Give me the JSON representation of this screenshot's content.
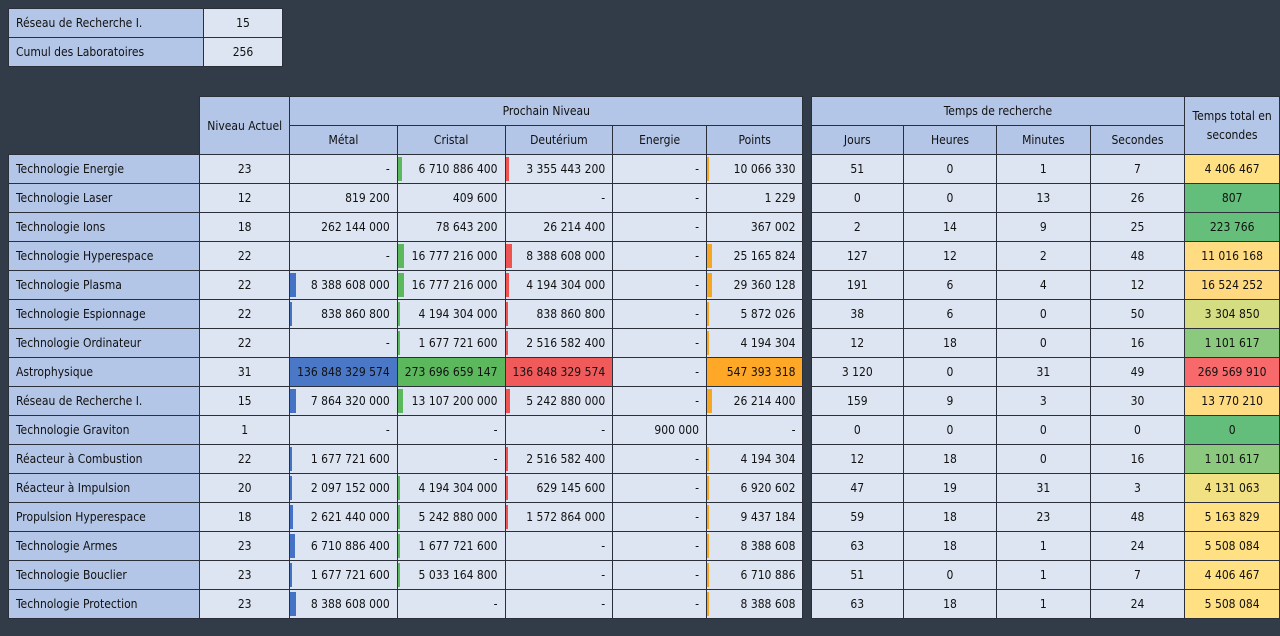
{
  "summary": [
    {
      "label": "Réseau de Recherche I.",
      "value": "15"
    },
    {
      "label": "Cumul des Laboratoires",
      "value": "256"
    }
  ],
  "headers": {
    "niveau": "Niveau Actuel",
    "prochain": "Prochain Niveau",
    "metal": "Métal",
    "cristal": "Cristal",
    "deut": "Deutérium",
    "energie": "Energie",
    "points": "Points",
    "temps": "Temps de recherche",
    "jours": "Jours",
    "heures": "Heures",
    "minutes": "Minutes",
    "secondes": "Secondes",
    "total": "Temps total en secondes"
  },
  "rows": [
    {
      "name": "Technologie Energie",
      "level": "23",
      "metal": "-",
      "cristal": "6 710 886 400",
      "deut": "3 355 443 200",
      "energie": "-",
      "points": "10 066 330",
      "jours": "51",
      "heures": "0",
      "minutes": "1",
      "secondes": "7",
      "total": "4 406 467",
      "total_color": "#ffe083",
      "bars": {
        "metal": 0,
        "cristal": 0.04,
        "deut": 0.03,
        "points": 0.02
      }
    },
    {
      "name": "Technologie Laser",
      "level": "12",
      "metal": "819 200",
      "cristal": "409 600",
      "deut": "-",
      "energie": "-",
      "points": "1 229",
      "jours": "0",
      "heures": "0",
      "minutes": "13",
      "secondes": "26",
      "total": "807",
      "total_color": "#63be7b",
      "bars": {
        "metal": 0,
        "cristal": 0,
        "deut": 0,
        "points": 0
      }
    },
    {
      "name": "Technologie Ions",
      "level": "18",
      "metal": "262 144 000",
      "cristal": "78 643 200",
      "deut": "26 214 400",
      "energie": "-",
      "points": "367 002",
      "jours": "2",
      "heures": "14",
      "minutes": "9",
      "secondes": "25",
      "total": "223 766",
      "total_color": "#65bf7b",
      "bars": {
        "metal": 0,
        "cristal": 0,
        "deut": 0,
        "points": 0
      }
    },
    {
      "name": "Technologie Hyperespace",
      "level": "22",
      "metal": "-",
      "cristal": "16 777 216 000",
      "deut": "8 388 608 000",
      "energie": "-",
      "points": "25 165 824",
      "jours": "127",
      "heures": "12",
      "minutes": "2",
      "secondes": "48",
      "total": "11 016 168",
      "total_color": "#ffdc81",
      "bars": {
        "metal": 0,
        "cristal": 0.06,
        "deut": 0.06,
        "points": 0.05
      }
    },
    {
      "name": "Technologie Plasma",
      "level": "22",
      "metal": "8 388 608 000",
      "cristal": "16 777 216 000",
      "deut": "4 194 304 000",
      "energie": "-",
      "points": "29 360 128",
      "jours": "191",
      "heures": "6",
      "minutes": "4",
      "secondes": "12",
      "total": "16 524 252",
      "total_color": "#fed980",
      "bars": {
        "metal": 0.06,
        "cristal": 0.06,
        "deut": 0.03,
        "points": 0.05
      }
    },
    {
      "name": "Technologie Espionnage",
      "level": "22",
      "metal": "838 860 800",
      "cristal": "4 194 304 000",
      "deut": "838 860 800",
      "energie": "-",
      "points": "5 872 026",
      "jours": "38",
      "heures": "6",
      "minutes": "0",
      "secondes": "50",
      "total": "3 304 850",
      "total_color": "#d4dd82",
      "bars": {
        "metal": 0.006,
        "cristal": 0.015,
        "deut": 0.006,
        "points": 0.01
      }
    },
    {
      "name": "Technologie Ordinateur",
      "level": "22",
      "metal": "-",
      "cristal": "1 677 721 600",
      "deut": "2 516 582 400",
      "energie": "-",
      "points": "4 194 304",
      "jours": "12",
      "heures": "18",
      "minutes": "0",
      "secondes": "16",
      "total": "1 101 617",
      "total_color": "#8ac97e",
      "bars": {
        "metal": 0,
        "cristal": 0.006,
        "deut": 0.018,
        "points": 0.008
      }
    },
    {
      "name": "Astrophysique",
      "level": "31",
      "metal": "136 848 329 574",
      "cristal": "273 696 659 147",
      "deut": "136 848 329 574",
      "energie": "-",
      "points": "547 393 318",
      "jours": "3 120",
      "heures": "0",
      "minutes": "31",
      "secondes": "49",
      "total": "269 569 910",
      "total_color": "#f8696b",
      "bars": {
        "metal": 1,
        "cristal": 1,
        "deut": 1,
        "points": 1
      }
    },
    {
      "name": "Réseau de Recherche I.",
      "level": "15",
      "metal": "7 864 320 000",
      "cristal": "13 107 200 000",
      "deut": "5 242 880 000",
      "energie": "-",
      "points": "26 214 400",
      "jours": "159",
      "heures": "9",
      "minutes": "3",
      "secondes": "30",
      "total": "13 770 210",
      "total_color": "#ffdb81",
      "bars": {
        "metal": 0.06,
        "cristal": 0.05,
        "deut": 0.04,
        "points": 0.05
      }
    },
    {
      "name": "Technologie Graviton",
      "level": "1",
      "metal": "-",
      "cristal": "-",
      "deut": "-",
      "energie": "900 000",
      "points": "-",
      "jours": "0",
      "heures": "0",
      "minutes": "0",
      "secondes": "0",
      "total": "0",
      "total_color": "#63be7b",
      "bars": {
        "metal": 0,
        "cristal": 0,
        "deut": 0,
        "points": 0
      }
    },
    {
      "name": "Réacteur à Combustion",
      "level": "22",
      "metal": "1 677 721 600",
      "cristal": "-",
      "deut": "2 516 582 400",
      "energie": "-",
      "points": "4 194 304",
      "jours": "12",
      "heures": "18",
      "minutes": "0",
      "secondes": "16",
      "total": "1 101 617",
      "total_color": "#8ac97e",
      "bars": {
        "metal": 0.012,
        "cristal": 0,
        "deut": 0.018,
        "points": 0.008
      }
    },
    {
      "name": "Réacteur à Impulsion",
      "level": "20",
      "metal": "2 097 152 000",
      "cristal": "4 194 304 000",
      "deut": "629 145 600",
      "energie": "-",
      "points": "6 920 602",
      "jours": "47",
      "heures": "19",
      "minutes": "31",
      "secondes": "3",
      "total": "4 131 063",
      "total_color": "#f2e183",
      "bars": {
        "metal": 0.015,
        "cristal": 0.015,
        "deut": 0.005,
        "points": 0.012
      }
    },
    {
      "name": "Propulsion Hyperespace",
      "level": "18",
      "metal": "2 621 440 000",
      "cristal": "5 242 880 000",
      "deut": "1 572 864 000",
      "energie": "-",
      "points": "9 437 184",
      "jours": "59",
      "heures": "18",
      "minutes": "23",
      "secondes": "48",
      "total": "5 163 829",
      "total_color": "#ffe083",
      "bars": {
        "metal": 0.03,
        "cristal": 0.02,
        "deut": 0.01,
        "points": 0.017
      }
    },
    {
      "name": "Technologie Armes",
      "level": "23",
      "metal": "6 710 886 400",
      "cristal": "1 677 721 600",
      "deut": "-",
      "energie": "-",
      "points": "8 388 608",
      "jours": "63",
      "heures": "18",
      "minutes": "1",
      "secondes": "24",
      "total": "5 508 084",
      "total_color": "#ffe083",
      "bars": {
        "metal": 0.05,
        "cristal": 0.006,
        "deut": 0,
        "points": 0.015
      }
    },
    {
      "name": "Technologie Bouclier",
      "level": "23",
      "metal": "1 677 721 600",
      "cristal": "5 033 164 800",
      "deut": "-",
      "energie": "-",
      "points": "6 710 886",
      "jours": "51",
      "heures": "0",
      "minutes": "1",
      "secondes": "7",
      "total": "4 406 467",
      "total_color": "#ffe083",
      "bars": {
        "metal": 0.012,
        "cristal": 0.018,
        "deut": 0,
        "points": 0.012
      }
    },
    {
      "name": "Technologie Protection",
      "level": "23",
      "metal": "8 388 608 000",
      "cristal": "-",
      "deut": "-",
      "energie": "-",
      "points": "8 388 608",
      "jours": "63",
      "heures": "18",
      "minutes": "1",
      "secondes": "24",
      "total": "5 508 084",
      "total_color": "#ffe083",
      "bars": {
        "metal": 0.06,
        "cristal": 0,
        "deut": 0,
        "points": 0.015
      }
    }
  ]
}
